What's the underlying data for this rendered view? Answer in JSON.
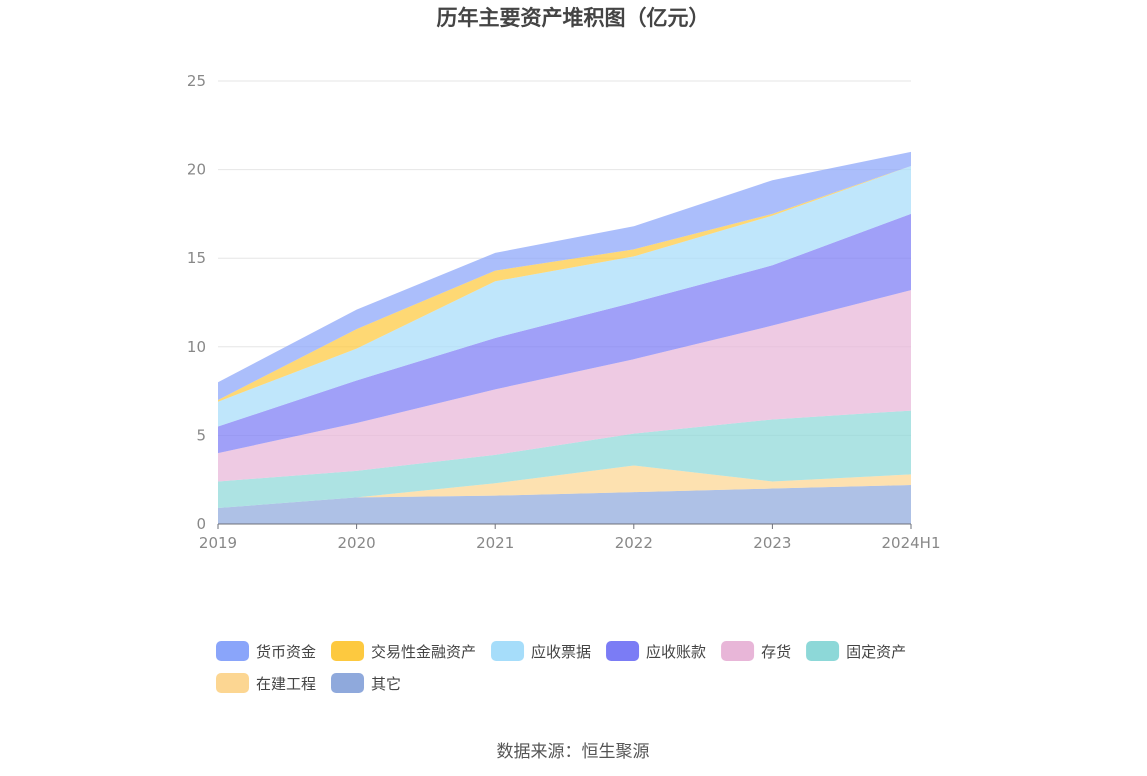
{
  "chart_data": {
    "type": "area",
    "stacked": true,
    "title": "历年主要资产堆积图（亿元）",
    "categories": [
      "2019",
      "2020",
      "2021",
      "2022",
      "2023",
      "2024H1"
    ],
    "ylim": [
      0,
      25
    ],
    "yticks": [
      0,
      5,
      10,
      15,
      20,
      25
    ],
    "grid": true,
    "legend_position": "bottom",
    "series": [
      {
        "name": "其它",
        "color": "#8fa9dc",
        "values": [
          0.9,
          1.5,
          1.6,
          1.8,
          2.0,
          2.2
        ]
      },
      {
        "name": "在建工程",
        "color": "#fcd692",
        "values": [
          0.0,
          0.0,
          0.7,
          1.5,
          0.4,
          0.6
        ]
      },
      {
        "name": "固定资产",
        "color": "#8dd8d8",
        "values": [
          1.5,
          1.5,
          1.6,
          1.8,
          3.5,
          3.6
        ]
      },
      {
        "name": "存货",
        "color": "#e8b6d8",
        "values": [
          1.6,
          2.7,
          3.7,
          4.2,
          5.3,
          6.8
        ]
      },
      {
        "name": "应收账款",
        "color": "#7b7cf5",
        "values": [
          1.5,
          2.4,
          2.9,
          3.2,
          3.4,
          4.3
        ]
      },
      {
        "name": "应收票据",
        "color": "#a6ddfa",
        "values": [
          1.4,
          1.8,
          3.2,
          2.6,
          2.8,
          2.7
        ]
      },
      {
        "name": "交易性金融资产",
        "color": "#fdc93f",
        "values": [
          0.1,
          1.1,
          0.6,
          0.4,
          0.1,
          0.0
        ]
      },
      {
        "name": "货币资金",
        "color": "#8aa5fa",
        "values": [
          1.0,
          1.1,
          1.0,
          1.3,
          1.9,
          0.8
        ]
      }
    ],
    "legend": [
      {
        "name": "货币资金",
        "color": "#8aa5fa"
      },
      {
        "name": "交易性金融资产",
        "color": "#fdc93f"
      },
      {
        "name": "应收票据",
        "color": "#a6ddfa"
      },
      {
        "name": "应收账款",
        "color": "#7b7cf5"
      },
      {
        "name": "存货",
        "color": "#e8b6d8"
      },
      {
        "name": "固定资产",
        "color": "#8dd8d8"
      },
      {
        "name": "在建工程",
        "color": "#fcd692"
      },
      {
        "name": "其它",
        "color": "#8fa9dc"
      }
    ]
  },
  "source": "数据来源：恒生聚源"
}
